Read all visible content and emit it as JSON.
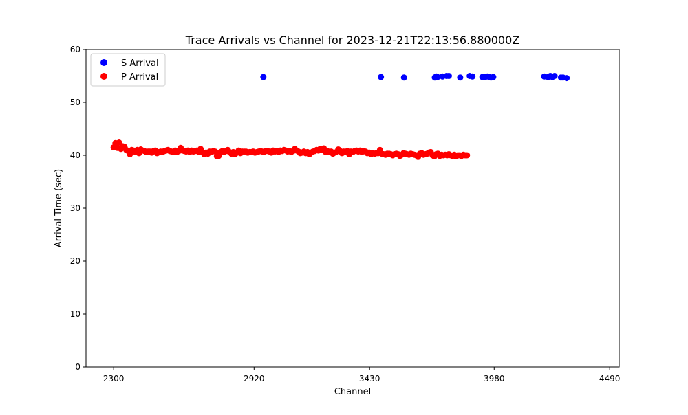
{
  "chart_data": {
    "type": "scatter",
    "title": "Trace Arrivals vs Channel for 2023-12-21T22:13:56.880000Z",
    "xlabel": "Channel",
    "ylabel": "Arrival Time (sec)",
    "xlim": [
      2178,
      4532
    ],
    "ylim": [
      0,
      60
    ],
    "xticks": [
      2300,
      2920,
      3430,
      3980,
      4490
    ],
    "yticks": [
      0,
      10,
      20,
      30,
      40,
      50,
      60
    ],
    "grid": false,
    "legend_position": "top-left",
    "series": [
      {
        "name": "S Arrival",
        "color": "#0000ff",
        "points": [
          [
            2961,
            54.8
          ],
          [
            3480,
            54.8
          ],
          [
            3582,
            54.7
          ],
          [
            3718,
            54.7
          ],
          [
            3724,
            54.9
          ],
          [
            3730,
            54.8
          ],
          [
            3752,
            54.9
          ],
          [
            3770,
            55.0
          ],
          [
            3780,
            55.0
          ],
          [
            3830,
            54.7
          ],
          [
            3872,
            55.0
          ],
          [
            3884,
            54.9
          ],
          [
            3928,
            54.8
          ],
          [
            3940,
            54.8
          ],
          [
            3950,
            54.9
          ],
          [
            3960,
            54.8
          ],
          [
            3966,
            54.7
          ],
          [
            3976,
            54.8
          ],
          [
            4201,
            54.9
          ],
          [
            4218,
            54.8
          ],
          [
            4228,
            55.0
          ],
          [
            4237,
            54.8
          ],
          [
            4247,
            55.0
          ],
          [
            4275,
            54.7
          ],
          [
            4284,
            54.7
          ],
          [
            4300,
            54.6
          ]
        ]
      },
      {
        "name": "P Arrival",
        "color": "#ff0000",
        "x_start": 2300,
        "x_step": 8,
        "y_values": [
          41.5,
          42.3,
          41.4,
          42.4,
          41.2,
          41.7,
          41.6,
          41.0,
          40.8,
          40.2,
          41.0,
          40.9,
          40.6,
          41.0,
          40.4,
          41.1,
          40.9,
          40.8,
          40.6,
          40.7,
          40.7,
          40.5,
          40.8,
          40.9,
          40.4,
          40.6,
          40.7,
          40.6,
          40.8,
          40.9,
          41.0,
          40.8,
          40.7,
          40.6,
          40.9,
          40.6,
          40.8,
          41.4,
          40.9,
          40.8,
          40.7,
          40.9,
          40.6,
          40.9,
          40.7,
          40.8,
          40.9,
          40.6,
          41.2,
          40.6,
          40.2,
          40.5,
          40.3,
          40.7,
          40.6,
          40.8,
          40.7,
          39.8,
          39.9,
          40.6,
          40.8,
          40.6,
          40.8,
          41.0,
          40.6,
          40.3,
          40.6,
          40.2,
          40.5,
          40.9,
          40.4,
          40.7,
          40.7,
          40.7,
          40.5,
          40.6,
          40.6,
          40.7,
          40.5,
          40.6,
          40.7,
          40.8,
          40.7,
          40.6,
          40.8,
          40.8,
          40.7,
          40.5,
          40.9,
          40.7,
          40.8,
          40.6,
          40.9,
          40.8,
          41.0,
          40.9,
          40.7,
          40.8,
          40.6,
          40.8,
          41.2,
          40.9,
          40.7,
          40.4,
          40.5,
          40.7,
          40.4,
          40.6,
          40.2,
          40.5,
          40.7,
          40.8,
          41.0,
          40.9,
          41.2,
          41.0,
          41.3,
          40.6,
          40.8,
          40.6,
          40.7,
          40.3,
          40.5,
          40.6,
          41.1,
          40.8,
          40.4,
          40.7,
          40.6,
          40.8,
          40.2,
          40.7,
          40.6,
          40.8,
          40.9,
          40.7,
          40.9,
          40.6,
          40.8,
          40.7,
          40.4,
          40.5,
          40.2,
          40.4,
          40.3,
          40.4,
          40.4,
          41.0,
          40.3,
          40.2,
          40.1,
          40.3,
          40.3,
          40.2,
          40.0,
          40.2,
          40.3,
          40.2,
          39.9,
          40.1,
          40.4,
          40.3,
          40.2,
          40.1,
          40.3,
          40.2,
          40.1,
          40.0,
          39.7,
          40.3,
          40.4,
          40.1,
          40.2,
          40.3,
          40.5,
          40.6,
          40.0,
          39.8,
          40.2,
          40.3,
          39.9,
          40.1,
          40.0,
          40.1,
          40.0,
          40.2,
          40.0,
          39.9,
          40.1,
          39.8,
          40.0,
          40.0,
          39.9,
          40.1,
          40.0,
          40.0
        ]
      }
    ]
  }
}
